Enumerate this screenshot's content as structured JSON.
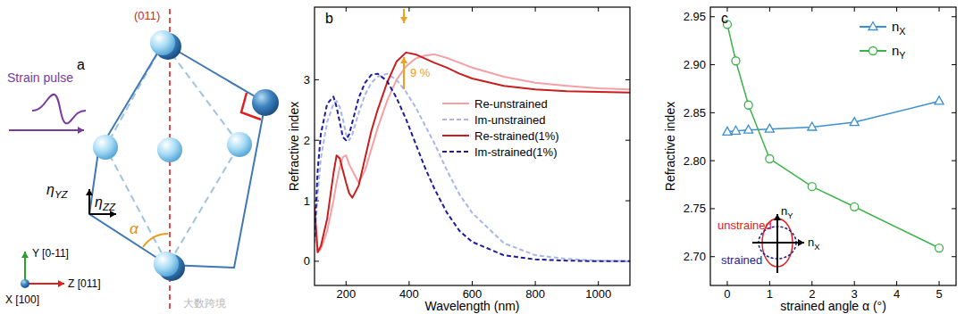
{
  "chart_data": [
    {
      "type": "line",
      "panel_label": "b",
      "x_label": "Wavelength (nm)",
      "y_label": "Refractive index",
      "x": [
        100,
        110,
        120,
        140,
        160,
        170,
        180,
        190,
        200,
        210,
        220,
        240,
        260,
        280,
        300,
        330,
        360,
        390,
        420,
        450,
        480,
        520,
        560,
        600,
        700,
        800,
        900,
        1000,
        1100
      ],
      "xlim": [
        100,
        1100
      ],
      "xticks": [
        200,
        400,
        600,
        800,
        1000
      ],
      "ylim": [
        -0.4,
        4.2
      ],
      "yticks": [
        0,
        1,
        2,
        3
      ],
      "legend": "upper right",
      "series": [
        {
          "name": "Re-unstrained",
          "color": "#f5a0a5",
          "line_style": "solid",
          "values": [
            0.8,
            0.15,
            0.2,
            0.5,
            1.0,
            1.3,
            1.55,
            1.72,
            1.75,
            1.6,
            1.5,
            1.3,
            1.5,
            1.85,
            2.2,
            2.65,
            3.0,
            3.22,
            3.35,
            3.4,
            3.42,
            3.36,
            3.28,
            3.2,
            3.05,
            2.95,
            2.9,
            2.86,
            2.84
          ]
        },
        {
          "name": "Im-unstrained",
          "color": "#a9b5ea",
          "line_style": "dashed",
          "values": [
            0.3,
            1.1,
            1.7,
            2.3,
            2.6,
            2.65,
            2.55,
            2.35,
            2.1,
            2.0,
            2.1,
            2.45,
            2.75,
            2.95,
            3.05,
            3.1,
            3.0,
            2.8,
            2.55,
            2.25,
            1.95,
            1.5,
            1.1,
            0.8,
            0.3,
            0.1,
            0.04,
            0.01,
            0
          ]
        },
        {
          "name": "Re-strained(1%)",
          "color": "#c81e1e",
          "line_style": "solid",
          "values": [
            0.9,
            0.15,
            0.25,
            0.7,
            1.45,
            1.75,
            1.7,
            1.5,
            1.3,
            1.12,
            1.05,
            1.25,
            1.7,
            2.15,
            2.5,
            2.95,
            3.3,
            3.45,
            3.42,
            3.35,
            3.28,
            3.2,
            3.1,
            3.02,
            2.9,
            2.84,
            2.81,
            2.8,
            2.79
          ]
        },
        {
          "name": "Im-strained(1%)",
          "color": "#1c1c9c",
          "line_style": "dashed",
          "values": [
            0.4,
            1.5,
            2.1,
            2.6,
            2.72,
            2.55,
            2.3,
            2.05,
            2.0,
            2.1,
            2.3,
            2.7,
            2.95,
            3.08,
            3.1,
            2.98,
            2.7,
            2.35,
            1.95,
            1.55,
            1.2,
            0.8,
            0.5,
            0.32,
            0.1,
            0.03,
            0.01,
            0,
            0
          ]
        }
      ],
      "annotations": [
        {
          "text": "9 %",
          "color": "#f0a020"
        }
      ]
    },
    {
      "type": "line",
      "panel_label": "c",
      "x_label": "strained angle α (°)",
      "y_label": "Refractive index",
      "x": [
        0,
        0.2,
        0.5,
        1,
        2,
        3,
        5
      ],
      "xlim": [
        -0.4,
        5.4
      ],
      "xticks": [
        0,
        1,
        2,
        3,
        4,
        5
      ],
      "ylim": [
        2.67,
        2.96
      ],
      "yticks": [
        {
          "value": 2.7,
          "label": "2.70"
        },
        {
          "value": 2.75,
          "label": "2.75"
        },
        {
          "value": 2.8,
          "label": "2.80"
        },
        {
          "value": 2.85,
          "label": "2.85"
        },
        {
          "value": 2.9,
          "label": "2.90"
        },
        {
          "value": 2.95,
          "label": "2.95"
        }
      ],
      "legend": "upper right",
      "series": [
        {
          "name": "nX",
          "color": "#3d8fd0",
          "marker": "triangle",
          "line_style": "solid",
          "values": [
            2.83,
            2.831,
            2.832,
            2.833,
            2.835,
            2.84,
            2.862
          ]
        },
        {
          "name": "nY",
          "color": "#3bb34a",
          "marker": "circle",
          "line_style": "solid",
          "values": [
            2.942,
            2.904,
            2.858,
            2.802,
            2.773,
            2.752,
            2.709
          ]
        }
      ],
      "annotations": [
        {
          "text": "unstrained",
          "color": "#e02020"
        },
        {
          "text": "strained",
          "color": "#1c1c9c"
        },
        {
          "text": "nY",
          "color": "#000000"
        },
        {
          "text": "nX",
          "color": "#000000"
        }
      ]
    }
  ],
  "diagram": {
    "panel_label": "a",
    "plane": "(011)",
    "strain_pulse": "Strain pulse",
    "strain_components": [
      {
        "symbol": "η",
        "subscript": "YZ"
      },
      {
        "symbol": "η",
        "subscript": "ZZ"
      }
    ],
    "angle": "α",
    "axes": [
      "Y [0-11]",
      "X [100]",
      "Z [011]"
    ],
    "watermark": "大数跨境"
  }
}
